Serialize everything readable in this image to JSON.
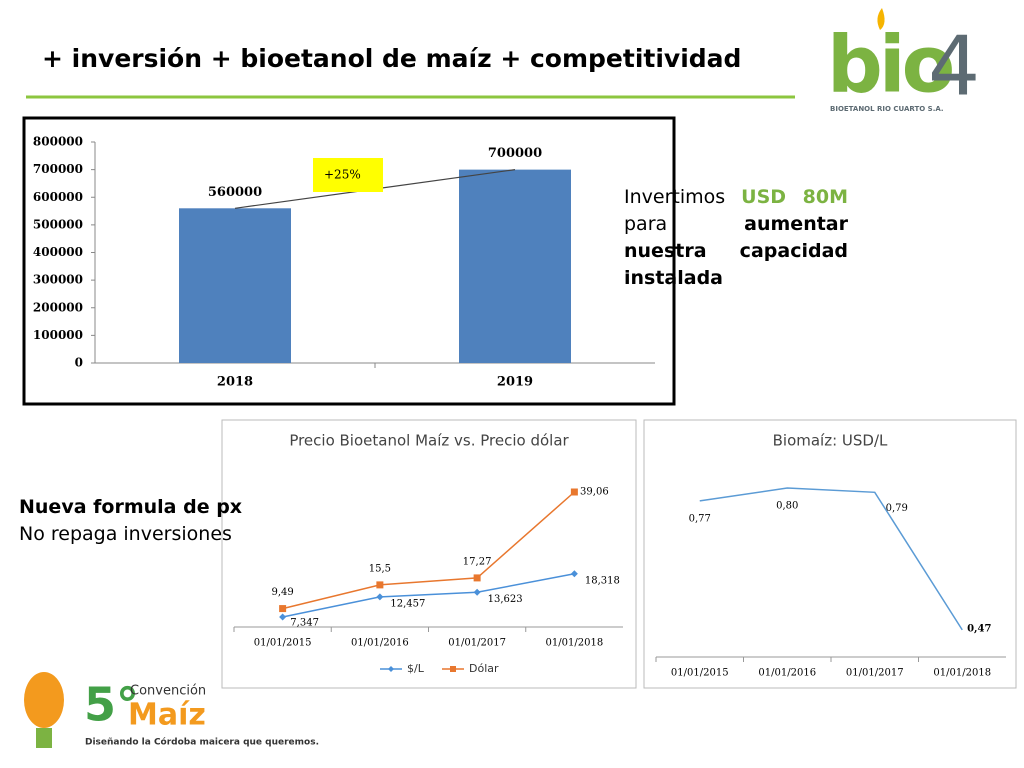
{
  "slide": {
    "title": "+ inversión + bioetanol de maíz + competitividad",
    "logo": {
      "brand": "bio",
      "number": "4",
      "company": "BIOETANOL RIO CUARTO S.A."
    },
    "note": [
      "Invertimos",
      "USD 80M",
      "para",
      "aumentar nuestra capacidad instalada"
    ],
    "note2": {
      "heading": "Nueva formula de px",
      "text": "No repaga inversiones"
    },
    "event": {
      "number": "5°",
      "name": "Convención",
      "topic": "Maíz",
      "tagline": "Diseñando la Córdoba maicera que queremos."
    }
  },
  "chart_data": [
    {
      "type": "bar",
      "categories": [
        "2018",
        "2019"
      ],
      "values": [
        560000,
        700000
      ],
      "color": "#4f81bd",
      "ylim": [
        0,
        800000
      ],
      "yticks": [
        0,
        100000,
        200000,
        300000,
        400000,
        500000,
        600000,
        700000,
        800000
      ],
      "grid": false,
      "annotation": "+25%"
    },
    {
      "type": "line",
      "title": "Precio Bioetanol Maíz vs. Precio dólar",
      "categories": [
        "01/01/2015",
        "01/01/2016",
        "01/01/2017",
        "01/01/2018"
      ],
      "series": [
        {
          "name": "$/L",
          "color": "#4a90d9",
          "values": [
            7.347,
            12.457,
            13.623,
            18.318
          ],
          "value_labels": [
            "7,347",
            "12,457",
            "13,623",
            "18,318"
          ]
        },
        {
          "name": "Dólar",
          "color": "#e8772e",
          "values": [
            9.49,
            15.5,
            17.27,
            39.06
          ],
          "value_labels": [
            "9,49",
            "15,5",
            "17,27",
            "39,06"
          ]
        }
      ]
    },
    {
      "type": "line",
      "title": "Biomaíz: USD/L",
      "categories": [
        "01/01/2015",
        "01/01/2016",
        "01/01/2017",
        "01/01/2018"
      ],
      "series": [
        {
          "name": "Biomaíz",
          "color": "#5b9bd5",
          "values": [
            0.77,
            0.8,
            0.79,
            0.47
          ],
          "value_labels": [
            "0,77",
            "0,80",
            "0,79",
            "0,47"
          ]
        }
      ]
    }
  ]
}
